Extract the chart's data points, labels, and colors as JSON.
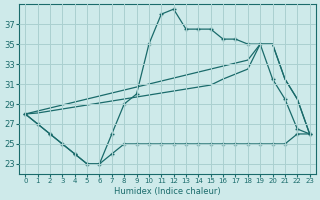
{
  "xlabel": "Humidex (Indice chaleur)",
  "ylabel": "",
  "bg_color": "#ceeaea",
  "grid_color": "#aad0d0",
  "line_color": "#1a6b6b",
  "x": [
    0,
    1,
    2,
    3,
    4,
    5,
    6,
    7,
    8,
    9,
    10,
    11,
    12,
    13,
    14,
    15,
    16,
    17,
    18,
    19,
    20,
    21,
    22,
    23
  ],
  "y_upper": [
    28,
    27,
    26,
    25,
    24,
    23,
    23,
    26,
    29,
    30,
    35,
    38,
    38.5,
    36.5,
    36.5,
    36.5,
    35.5,
    35.5,
    35,
    35,
    31.5,
    29.5,
    26.5,
    26
  ],
  "y_diag1": [
    28,
    28.3,
    28.6,
    28.9,
    29.2,
    29.5,
    29.8,
    30.1,
    30.4,
    30.7,
    31.0,
    31.3,
    31.6,
    31.9,
    32.2,
    32.5,
    32.8,
    33.1,
    33.4,
    35,
    35,
    31.5,
    29.5,
    26
  ],
  "y_diag2": [
    28,
    28.1,
    28.3,
    28.5,
    28.7,
    28.9,
    29.1,
    29.3,
    29.5,
    29.7,
    29.9,
    30.1,
    30.3,
    30.5,
    30.7,
    30.9,
    31.5,
    32.0,
    32.5,
    35,
    35,
    31.5,
    29.5,
    26
  ],
  "y_lower": [
    28,
    27,
    26,
    25,
    24,
    23,
    23,
    24,
    25,
    25,
    25,
    25,
    25,
    25,
    25,
    25,
    25,
    25,
    25,
    25,
    25,
    25,
    26,
    26
  ],
  "xlim": [
    -0.5,
    23.5
  ],
  "ylim": [
    22,
    39
  ],
  "yticks": [
    23,
    25,
    27,
    29,
    31,
    33,
    35,
    37
  ],
  "marker": "+"
}
